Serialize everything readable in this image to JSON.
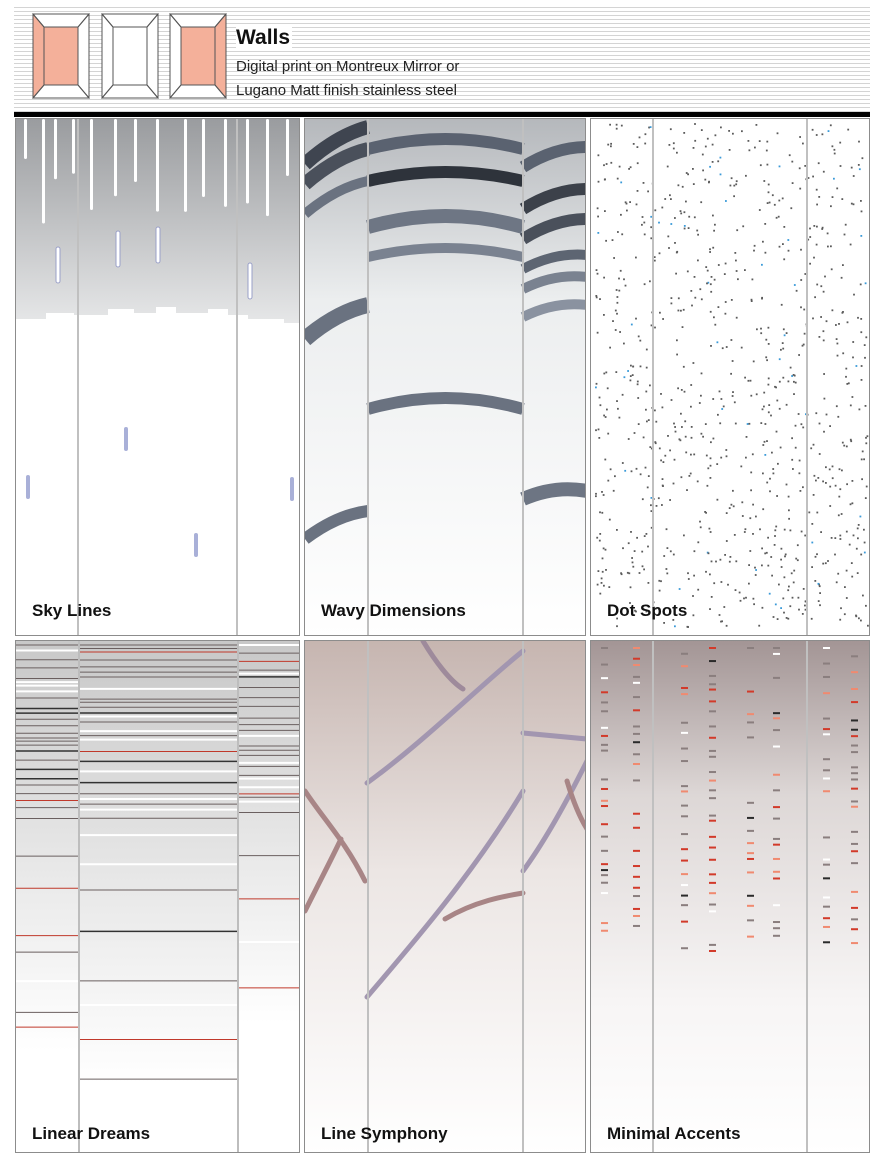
{
  "header": {
    "title": "Walls",
    "subtitle_line1": "Digital print on Montreux Mirror or",
    "subtitle_line2": "Lugano Matt finish stainless steel",
    "icons": [
      "frame-icon-left-panel",
      "frame-icon-center-panel",
      "frame-icon-right-panel"
    ]
  },
  "colors": {
    "accent_salmon": "#f4b09a",
    "rule": "#000000",
    "panel_border": "#8c8c8c"
  },
  "designs": [
    {
      "label": "Sky Lines"
    },
    {
      "label": "Wavy Dimensions"
    },
    {
      "label": "Dot Spots"
    },
    {
      "label": "Linear Dreams"
    },
    {
      "label": "Line Symphony"
    },
    {
      "label": "Minimal Accents"
    }
  ]
}
